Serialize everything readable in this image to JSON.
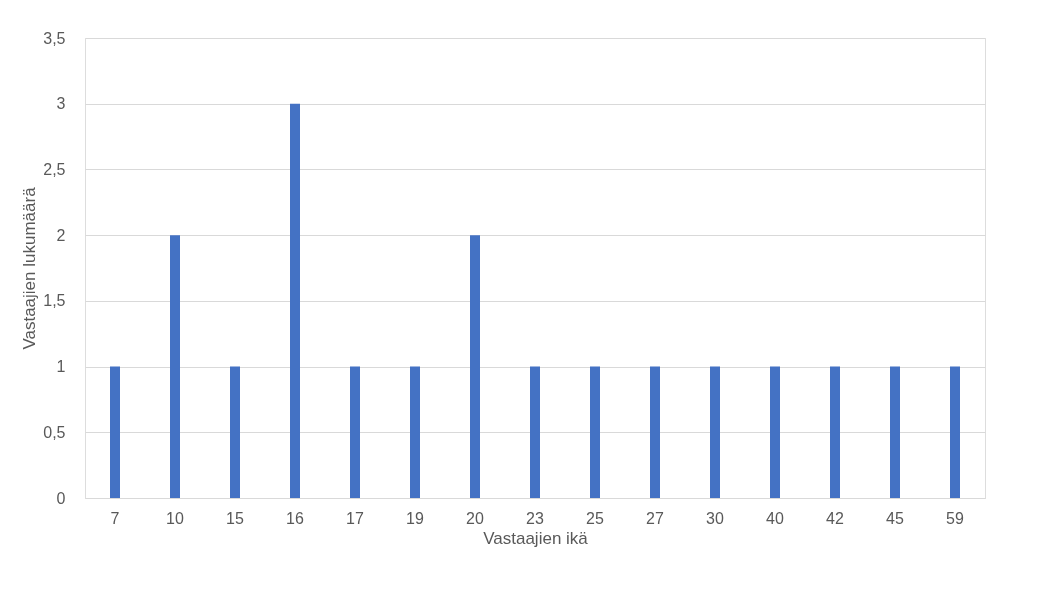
{
  "chart_data": {
    "type": "bar",
    "xlabel": "Vastaajien ikä",
    "ylabel": "Vastaajien lukumäärä",
    "categories": [
      "7",
      "10",
      "15",
      "16",
      "17",
      "19",
      "20",
      "23",
      "25",
      "27",
      "30",
      "40",
      "42",
      "45",
      "59"
    ],
    "values": [
      1,
      2,
      1,
      3,
      1,
      1,
      2,
      1,
      1,
      1,
      1,
      1,
      1,
      1,
      1
    ],
    "color": "#4472c4",
    "ylim": [
      0,
      3.5
    ],
    "yticks": [
      0,
      {
        "value": 0.5,
        "label": "0,5"
      },
      1,
      {
        "value": 1.5,
        "label": "1,5"
      },
      2,
      {
        "value": 2.5,
        "label": "2,5"
      },
      3,
      {
        "value": 3.5,
        "label": "3,5"
      }
    ],
    "grid": "y"
  }
}
